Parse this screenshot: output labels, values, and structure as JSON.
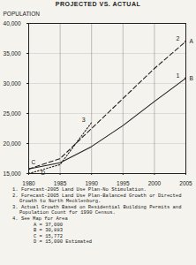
{
  "chart_data": {
    "type": "line",
    "title": "PROJECTED VS. ACTUAL",
    "y_label": "POPULATION",
    "x": [
      1980,
      1985,
      1990,
      1995,
      2000,
      2005
    ],
    "xlim": [
      1980,
      2005
    ],
    "xticks": [
      1980,
      1985,
      1990,
      1995,
      2000,
      2005
    ],
    "ylim": [
      15000,
      40000
    ],
    "yticks": [
      {
        "value": 15000,
        "label": "15,000"
      },
      {
        "value": 20000,
        "label": "20,000"
      },
      {
        "value": 25000,
        "label": "25,000"
      },
      {
        "value": 30000,
        "label": "30,000"
      },
      {
        "value": 35000,
        "label": "35,000"
      },
      {
        "value": 40000,
        "label": "40,000"
      }
    ],
    "grid": true,
    "series": [
      {
        "name": "1",
        "color": "#222222",
        "line_style": "solid",
        "values": [
          15772,
          16800,
          19500,
          23000,
          27000,
          30883
        ]
      },
      {
        "name": "2",
        "color": "#222222",
        "line_style": "dashed",
        "values": [
          15772,
          17500,
          22500,
          27500,
          32500,
          37000
        ]
      },
      {
        "name": "3",
        "color": "#222222",
        "line_style": "dotted",
        "values": [
          15000,
          16500,
          23500,
          null,
          null,
          null
        ]
      }
    ],
    "points": [
      {
        "label": "A",
        "x": 2005,
        "y": 37000
      },
      {
        "label": "B",
        "x": 2005,
        "y": 30883
      },
      {
        "label": "C",
        "x": 1980,
        "y": 15772
      },
      {
        "label": "D",
        "x": 1980,
        "y": 15000
      }
    ],
    "notes": [
      "1. Forecast-2005 Land Use Plan-No Stimulation.",
      "2. Forecast-2005 Land Use Plan-Balanced Growth or Directed Growth to North Mecklenburg.",
      "3. Actual Growth Based on Residential Building Permits and Population Count for 1990 Census.",
      "4. See Map for Area"
    ],
    "note_items": [
      "A = 37,000",
      "B = 30,883",
      "C = 15,772",
      "D = 15,000 Estimated"
    ]
  }
}
